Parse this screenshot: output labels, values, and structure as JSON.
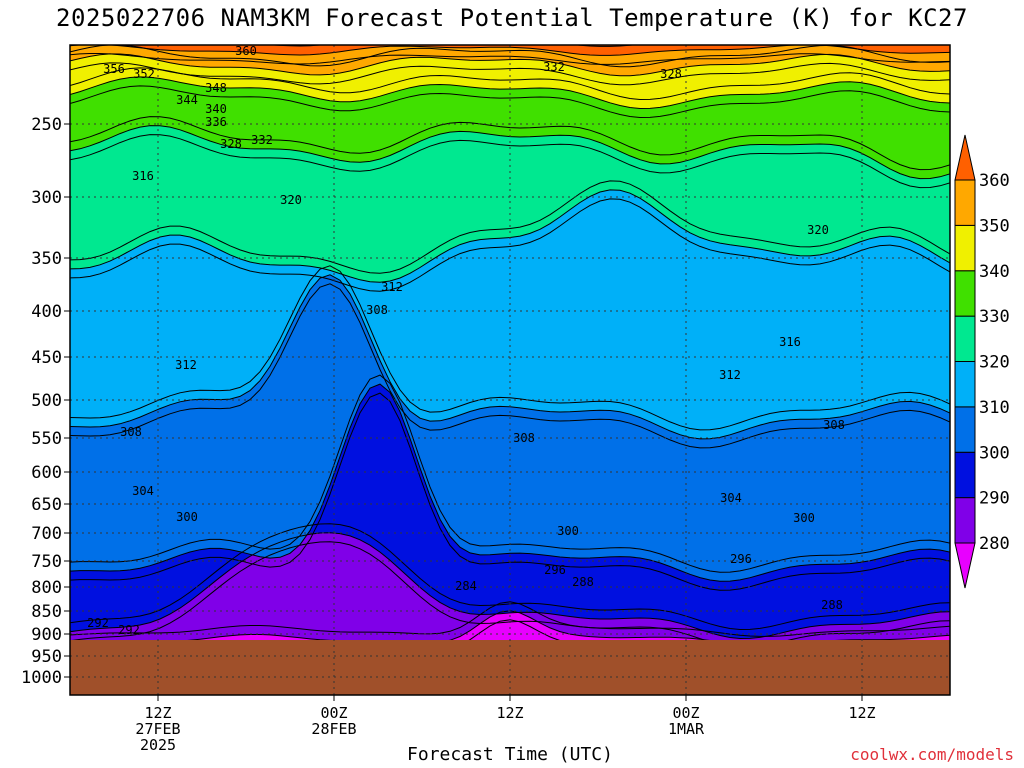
{
  "title": "2025022706 NAM3KM Forecast Potential Temperature (K) for KC27",
  "xlabel": "Forecast Time (UTC)",
  "credit": "coolwx.com/models",
  "colors": {
    "bands": [
      "#e800ff",
      "#8000e8",
      "#0010e0",
      "#0070e8",
      "#00b0f8",
      "#00e890",
      "#40e000",
      "#f0f000",
      "#ffa800",
      "#ff6000"
    ],
    "ground": "#a0502a"
  },
  "chart_data": {
    "type": "heatmap",
    "title": "2025022706 NAM3KM Forecast Potential Temperature (K) for KC27",
    "xlabel": "Forecast Time (UTC)",
    "y_axis": {
      "scale": "log-pressure",
      "ticks": [
        "250",
        "300",
        "350",
        "400",
        "450",
        "500",
        "550",
        "600",
        "650",
        "700",
        "750",
        "800",
        "850",
        "900",
        "950",
        "1000"
      ],
      "grid": true
    },
    "x_axis": {
      "ticks": [
        {
          "label": "12Z",
          "sub1": "27FEB",
          "sub2": "2025"
        },
        {
          "label": "00Z",
          "sub1": "28FEB",
          "sub2": ""
        },
        {
          "label": "12Z",
          "sub1": "",
          "sub2": ""
        },
        {
          "label": "00Z",
          "sub1": "1MAR",
          "sub2": ""
        },
        {
          "label": "12Z",
          "sub1": "",
          "sub2": ""
        }
      ],
      "grid": true
    },
    "colorbar": {
      "ticks": [
        "280",
        "290",
        "300",
        "310",
        "320",
        "330",
        "340",
        "350",
        "360"
      ],
      "bands": [
        {
          "range": "<280",
          "color": "#e800ff"
        },
        {
          "range": "280-290",
          "color": "#8000e8"
        },
        {
          "range": "290-300",
          "color": "#0010e0"
        },
        {
          "range": "300-310",
          "color": "#0070e8"
        },
        {
          "range": "310-320",
          "color": "#00b0f8"
        },
        {
          "range": "320-330",
          "color": "#00e890"
        },
        {
          "range": "330-340",
          "color": "#40e000"
        },
        {
          "range": "340-350",
          "color": "#f0f000"
        },
        {
          "range": "350-360",
          "color": "#ffa800"
        },
        {
          "range": ">360",
          "color": "#ff6000"
        }
      ]
    },
    "contour_labels": [
      "360",
      "356",
      "352",
      "348",
      "344",
      "340",
      "336",
      "332",
      "328",
      "332",
      "328",
      "316",
      "320",
      "320",
      "312",
      "308",
      "316",
      "312",
      "312",
      "308",
      "308",
      "308",
      "304",
      "304",
      "300",
      "300",
      "300",
      "296",
      "292",
      "296",
      "292",
      "288",
      "284",
      "288"
    ]
  }
}
